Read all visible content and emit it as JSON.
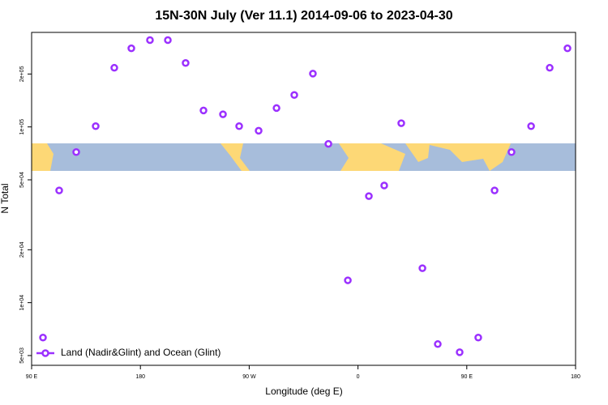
{
  "chart_data": {
    "type": "scatter",
    "title": "15N-30N July (Ver 11.1)   2014-09-06 to 2023-04-30",
    "x_label": "Longitude (deg E)",
    "y_label": "N Total",
    "log_y": true,
    "legend": "bottom-left",
    "xlim": [
      90,
      540
    ],
    "ylim": [
      4400,
      345000
    ],
    "xticks": [
      {
        "value": 90,
        "label": "90 E"
      },
      {
        "value": 180,
        "label": "180"
      },
      {
        "value": 270,
        "label": "90 W"
      },
      {
        "value": 360,
        "label": "0"
      },
      {
        "value": 450,
        "label": "90 E"
      },
      {
        "value": 540,
        "label": "180"
      }
    ],
    "yticks": [
      {
        "value": 5000,
        "label": "5e+03"
      },
      {
        "value": 10000,
        "label": "1e+04"
      },
      {
        "value": 20000,
        "label": "2e+04"
      },
      {
        "value": 50000,
        "label": "5e+04"
      },
      {
        "value": 100000,
        "label": "1e+05"
      },
      {
        "value": 200000,
        "label": "2e+05"
      }
    ],
    "series": [
      {
        "name": "Land (Nadir&Glint) and Ocean (Glint)",
        "color": "#9b30ff",
        "x": [
          99.4,
          112.8,
          126.9,
          143,
          158.4,
          172.5,
          187.9,
          202.7,
          217.4,
          232.2,
          248.3,
          261.7,
          277.8,
          292.6,
          307.3,
          322.7,
          335.5,
          351.6,
          369,
          381.7,
          395.8,
          413.3,
          426,
          444.1,
          459.5,
          473,
          487,
          503.2,
          518.6,
          533.3
        ],
        "values": [
          6330,
          43500,
          71900,
          101000,
          217000,
          280000,
          312000,
          312000,
          231000,
          124000,
          118000,
          101000,
          95100,
          128000,
          152000,
          201000,
          80100,
          13400,
          40400,
          46400,
          105000,
          15700,
          5810,
          5220,
          6330,
          43500,
          71900,
          101000,
          217000,
          280000
        ]
      }
    ]
  }
}
